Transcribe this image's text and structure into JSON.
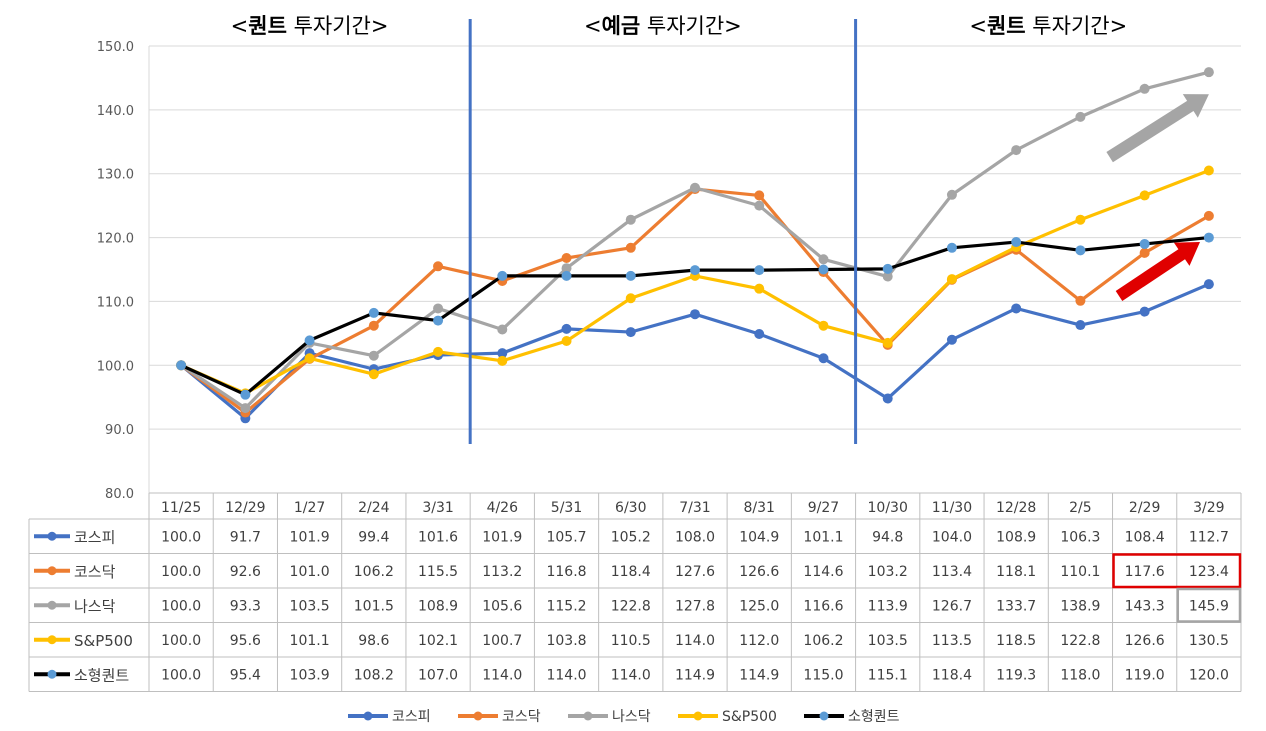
{
  "chart_data": {
    "type": "line",
    "categories": [
      "11/25",
      "12/29",
      "1/27",
      "2/24",
      "3/31",
      "4/26",
      "5/31",
      "6/30",
      "7/31",
      "8/31",
      "9/27",
      "10/30",
      "11/30",
      "12/28",
      "2/5",
      "2/29",
      "3/29"
    ],
    "ylim": [
      80,
      150
    ],
    "yticks": [
      80,
      90,
      100,
      110,
      120,
      130,
      140,
      150
    ],
    "ytick_labels": [
      "80.0",
      "90.0",
      "100.0",
      "110.0",
      "120.0",
      "130.0",
      "140.0",
      "150.0"
    ],
    "series": [
      {
        "name": "코스피",
        "color": "#4472C4",
        "marker_color": "#4472C4",
        "values": [
          100.0,
          91.7,
          101.9,
          99.4,
          101.6,
          101.9,
          105.7,
          105.2,
          108.0,
          104.9,
          101.1,
          94.8,
          104.0,
          108.9,
          106.3,
          108.4,
          112.7
        ],
        "labels": [
          "100.0",
          "91.7",
          "101.9",
          "99.4",
          "101.6",
          "101.9",
          "105.7",
          "105.2",
          "108.0",
          "104.9",
          "101.1",
          "94.8",
          "104.0",
          "108.9",
          "106.3",
          "108.4",
          "112.7"
        ]
      },
      {
        "name": "코스닥",
        "color": "#ED7D31",
        "marker_color": "#ED7D31",
        "values": [
          100.0,
          92.6,
          101.0,
          106.2,
          115.5,
          113.2,
          116.8,
          118.4,
          127.6,
          126.6,
          114.6,
          103.2,
          113.4,
          118.1,
          110.1,
          117.6,
          123.4
        ],
        "labels": [
          "100.0",
          "92.6",
          "101.0",
          "106.2",
          "115.5",
          "113.2",
          "116.8",
          "118.4",
          "127.6",
          "126.6",
          "114.6",
          "103.2",
          "113.4",
          "118.1",
          "110.1",
          "117.6",
          "123.4"
        ]
      },
      {
        "name": "나스닥",
        "color": "#A5A5A5",
        "marker_color": "#A5A5A5",
        "values": [
          100.0,
          93.3,
          103.5,
          101.5,
          108.9,
          105.6,
          115.2,
          122.8,
          127.8,
          125.0,
          116.6,
          113.9,
          126.7,
          133.7,
          138.9,
          143.3,
          145.9
        ],
        "labels": [
          "100.0",
          "93.3",
          "103.5",
          "101.5",
          "108.9",
          "105.6",
          "115.2",
          "122.8",
          "127.8",
          "125.0",
          "116.6",
          "113.9",
          "126.7",
          "133.7",
          "138.9",
          "143.3",
          "145.9"
        ]
      },
      {
        "name": "S&P500",
        "color": "#FFC000",
        "marker_color": "#FFC000",
        "values": [
          100.0,
          95.6,
          101.1,
          98.6,
          102.1,
          100.7,
          103.8,
          110.5,
          114.0,
          112.0,
          106.2,
          103.5,
          113.5,
          118.5,
          122.8,
          126.6,
          130.5
        ],
        "labels": [
          "100.0",
          "95.6",
          "101.1",
          "98.6",
          "102.1",
          "100.7",
          "103.8",
          "110.5",
          "114.0",
          "112.0",
          "106.2",
          "103.5",
          "113.5",
          "118.5",
          "122.8",
          "126.6",
          "130.5"
        ]
      },
      {
        "name": "소형퀀트",
        "color": "#000000",
        "marker_color": "#5B9BD5",
        "values": [
          100.0,
          95.4,
          103.9,
          108.2,
          107.0,
          114.0,
          114.0,
          114.0,
          114.9,
          114.9,
          115.0,
          115.1,
          118.4,
          119.3,
          118.0,
          119.0,
          120.0
        ],
        "labels": [
          "100.0",
          "95.4",
          "103.9",
          "108.2",
          "107.0",
          "114.0",
          "114.0",
          "114.0",
          "114.9",
          "114.9",
          "115.0",
          "115.1",
          "118.4",
          "119.3",
          "118.0",
          "119.0",
          "120.0"
        ]
      }
    ],
    "period_labels": [
      {
        "open": "<",
        "bold": "퀀트",
        "rest": " 투자기간>"
      },
      {
        "open": "<",
        "bold": "예금",
        "rest": " 투자기간>"
      },
      {
        "open": "<",
        "bold": "퀀트",
        "rest": " 투자기간>"
      }
    ],
    "period_dividers_between": [
      [
        4,
        5
      ],
      [
        10,
        11
      ]
    ],
    "highlight_boxes": [
      {
        "series": 1,
        "from": 15,
        "to": 16,
        "color": "#E00000"
      },
      {
        "series": 2,
        "from": 16,
        "to": 16,
        "color": "#A5A5A5"
      }
    ],
    "arrows": [
      {
        "series": 2,
        "color": "#A5A5A5"
      },
      {
        "series": 4,
        "color": "#E00000"
      }
    ],
    "legend_position": "bottom",
    "grid": true
  }
}
